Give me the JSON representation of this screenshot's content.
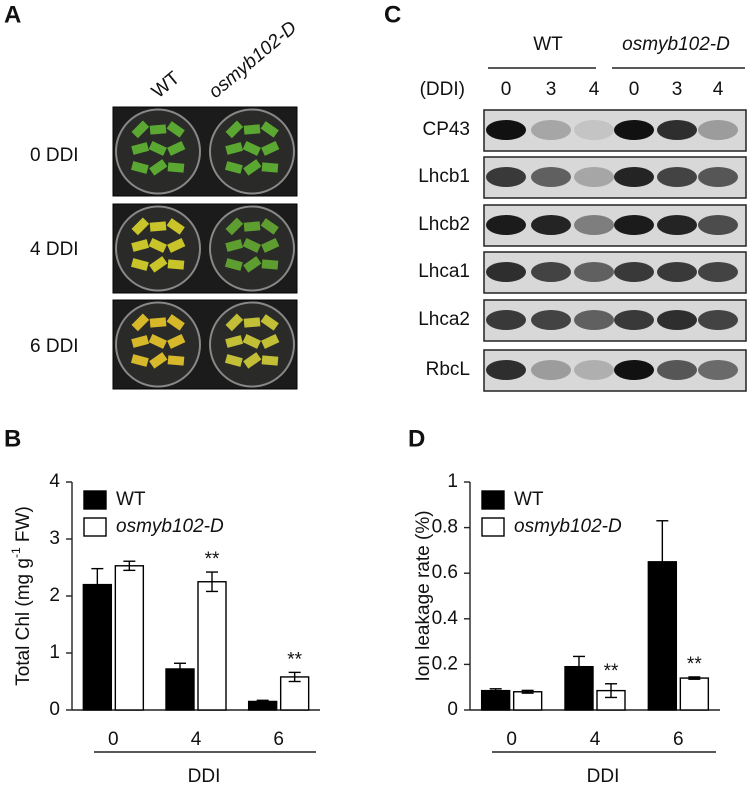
{
  "panel_a": {
    "label": "A",
    "columns": [
      "WT",
      "osmyb102-D"
    ],
    "rows": [
      "0 DDI",
      "4 DDI",
      "6 DDI"
    ]
  },
  "panel_c": {
    "label": "C",
    "groups": [
      "WT",
      "osmyb102-D"
    ],
    "lane_header": "(DDI)",
    "lanes": [
      "0",
      "3",
      "4",
      "0",
      "3",
      "4"
    ],
    "proteins": [
      "CP43",
      "Lhcb1",
      "Lhcb2",
      "Lhca1",
      "Lhca2",
      "RbcL"
    ]
  },
  "chart_data": [
    {
      "type": "bar",
      "panel_label": "B",
      "ylabel": [
        "Total Chl (mg g",
        "-1",
        " FW)"
      ],
      "xlabel": "DDI",
      "categories": [
        "0",
        "4",
        "6"
      ],
      "ylim": [
        0,
        4
      ],
      "yticks": [
        0,
        1,
        2,
        3,
        4
      ],
      "legend": "top-left",
      "series": [
        {
          "name": "WT",
          "color": "#000000",
          "values": [
            2.2,
            0.72,
            0.15
          ],
          "errors": [
            0.28,
            0.1,
            0.02
          ]
        },
        {
          "name": "osmyb102-D",
          "color": "#ffffff",
          "values": [
            2.53,
            2.25,
            0.58
          ],
          "errors": [
            0.08,
            0.17,
            0.08
          ],
          "significance": [
            null,
            "**",
            "**"
          ]
        }
      ]
    },
    {
      "type": "bar",
      "panel_label": "D",
      "ylabel": [
        "Ion leakage rate (%)"
      ],
      "xlabel": "DDI",
      "categories": [
        "0",
        "4",
        "6"
      ],
      "ylim": [
        0,
        1
      ],
      "yticks": [
        0,
        0.2,
        0.4,
        0.6,
        0.8,
        1
      ],
      "legend": "top-left",
      "series": [
        {
          "name": "WT",
          "color": "#000000",
          "values": [
            0.085,
            0.19,
            0.65
          ],
          "errors": [
            0.008,
            0.045,
            0.18
          ]
        },
        {
          "name": "osmyb102-D",
          "color": "#ffffff",
          "values": [
            0.08,
            0.085,
            0.14
          ],
          "errors": [
            0.006,
            0.03,
            0.005
          ],
          "significance": [
            null,
            "**",
            "**"
          ]
        }
      ]
    }
  ]
}
